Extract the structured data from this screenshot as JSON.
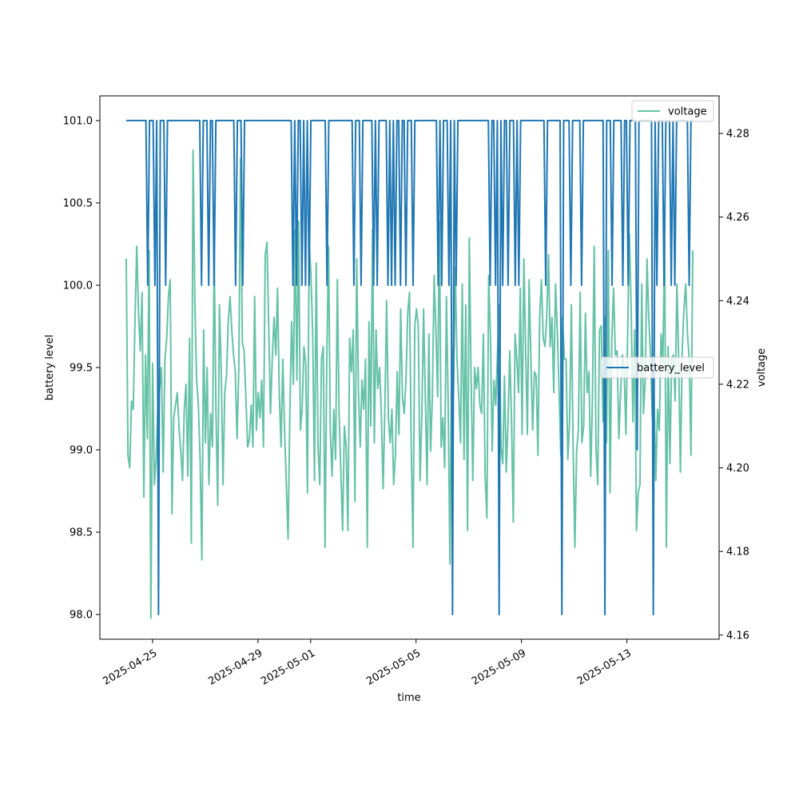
{
  "chart_data": {
    "type": "line",
    "xlabel": "time",
    "ylabel_left": "battery level",
    "ylabel_right": "voltage",
    "x_range": [
      "2025-04-23T00:00",
      "2025-05-16T12:00"
    ],
    "x_ticks": [
      "2025-04-25",
      "2025-04-29",
      "2025-05-01",
      "2025-05-05",
      "2025-05-09",
      "2025-05-13"
    ],
    "y_left_range": [
      97.85,
      101.15
    ],
    "y_left_ticks": [
      "98.0",
      "98.5",
      "99.0",
      "99.5",
      "100.0",
      "100.5",
      "101.0"
    ],
    "y_right_range": [
      4.159,
      4.289
    ],
    "y_right_ticks": [
      "4.16",
      "4.18",
      "4.20",
      "4.22",
      "4.24",
      "4.26",
      "4.28"
    ],
    "series_time_range": [
      "2025-04-24T00:00",
      "2025-05-15T12:00"
    ],
    "series": [
      {
        "name": "battery_level",
        "axis": "left",
        "color": "#1f77b4",
        "legend_position": "center-right",
        "values": [
          101,
          101,
          101,
          101,
          101,
          101,
          101,
          101,
          101,
          101,
          101,
          101,
          100,
          101,
          101,
          101,
          100,
          101,
          98,
          101,
          101,
          101,
          100,
          101,
          101,
          101,
          101,
          101,
          101,
          101,
          101,
          101,
          101,
          101,
          101,
          101,
          101,
          101,
          101,
          101,
          101,
          101,
          100,
          101,
          101,
          101,
          100,
          101,
          101,
          100,
          101,
          101,
          101,
          101,
          101,
          101,
          101,
          101,
          101,
          101,
          101,
          100,
          101,
          101,
          101,
          100,
          101,
          101,
          101,
          101,
          101,
          101,
          101,
          101,
          101,
          101,
          101,
          101,
          101,
          101,
          101,
          101,
          101,
          101,
          101,
          101,
          101,
          101,
          101,
          101,
          101,
          101,
          101,
          100,
          101,
          100,
          101,
          101,
          100,
          101,
          100,
          101,
          100,
          101,
          101,
          101,
          101,
          101,
          101,
          101,
          101,
          101,
          100,
          101,
          101,
          101,
          101,
          101,
          101,
          101,
          101,
          101,
          101,
          101,
          101,
          101,
          101,
          100,
          101,
          101,
          101,
          100,
          101,
          101,
          101,
          101,
          101,
          101,
          100,
          101,
          100,
          101,
          101,
          101,
          101,
          101,
          100,
          101,
          100,
          101,
          100,
          101,
          101,
          100,
          101,
          101,
          100,
          101,
          101,
          101,
          100,
          101,
          101,
          101,
          101,
          101,
          101,
          101,
          101,
          101,
          101,
          101,
          101,
          101,
          100,
          101,
          100,
          101,
          101,
          101,
          100,
          101,
          98,
          101,
          100,
          101,
          101,
          101,
          101,
          101,
          101,
          101,
          101,
          101,
          101,
          101,
          101,
          101,
          101,
          101,
          101,
          101,
          101,
          100,
          101,
          101,
          100,
          101,
          98,
          101,
          100,
          101,
          101,
          100,
          101,
          101,
          101,
          100,
          101,
          100,
          101,
          101,
          101,
          101,
          101,
          101,
          101,
          101,
          101,
          101,
          101,
          101,
          101,
          101,
          100,
          101,
          101,
          101,
          101,
          101,
          101,
          101,
          101,
          98,
          101,
          101,
          101,
          101,
          100,
          101,
          101,
          101,
          101,
          101,
          100,
          101,
          101,
          101,
          101,
          101,
          101,
          101,
          101,
          101,
          101,
          101,
          101,
          98,
          101,
          101,
          101,
          100,
          101,
          101,
          101,
          101,
          101,
          100,
          101,
          101,
          100,
          101,
          101,
          101,
          101,
          99,
          101,
          101,
          101,
          101,
          101,
          101,
          101,
          101,
          98,
          101,
          100,
          101,
          101,
          101,
          100,
          101,
          101,
          101,
          100,
          101,
          100,
          101,
          101,
          101,
          101,
          101,
          101,
          101,
          100,
          101,
          101
        ]
      },
      {
        "name": "voltage",
        "axis": "right",
        "color": "#66c2a5",
        "legend_position": "upper-right",
        "values": [
          4.25,
          4.203,
          4.2,
          4.216,
          4.214,
          4.236,
          4.253,
          4.237,
          4.228,
          4.242,
          4.193,
          4.227,
          4.207,
          4.252,
          4.164,
          4.225,
          4.196,
          4.202,
          4.215,
          4.219,
          4.224,
          4.199,
          4.226,
          4.231,
          4.241,
          4.245,
          4.189,
          4.212,
          4.215,
          4.218,
          4.21,
          4.204,
          4.197,
          4.214,
          4.22,
          4.198,
          4.231,
          4.182,
          4.276,
          4.24,
          4.221,
          4.215,
          4.202,
          4.178,
          4.233,
          4.206,
          4.224,
          4.196,
          4.213,
          4.205,
          4.251,
          4.214,
          4.191,
          4.239,
          4.223,
          4.196,
          4.218,
          4.222,
          4.235,
          4.241,
          4.233,
          4.227,
          4.223,
          4.207,
          4.224,
          4.274,
          4.23,
          4.228,
          4.217,
          4.205,
          4.207,
          4.215,
          4.205,
          4.241,
          4.209,
          4.218,
          4.212,
          4.221,
          4.205,
          4.251,
          4.254,
          4.234,
          4.213,
          4.226,
          4.236,
          4.227,
          4.243,
          4.218,
          4.205,
          4.226,
          4.209,
          4.196,
          4.183,
          4.213,
          4.235,
          4.22,
          4.257,
          4.221,
          4.259,
          4.209,
          4.214,
          4.229,
          4.225,
          4.194,
          4.254,
          4.246,
          4.232,
          4.197,
          4.249,
          4.205,
          4.196,
          4.226,
          4.229,
          4.181,
          4.226,
          4.253,
          4.209,
          4.198,
          4.214,
          4.202,
          4.245,
          4.213,
          4.199,
          4.185,
          4.21,
          4.205,
          4.185,
          4.231,
          4.223,
          4.233,
          4.192,
          4.25,
          4.218,
          4.205,
          4.221,
          4.214,
          4.226,
          4.181,
          4.235,
          4.21,
          4.257,
          4.206,
          4.233,
          4.219,
          4.224,
          4.213,
          4.195,
          4.214,
          4.24,
          4.212,
          4.206,
          4.214,
          4.196,
          4.203,
          4.223,
          4.208,
          4.238,
          4.217,
          4.213,
          4.221,
          4.237,
          4.242,
          4.205,
          4.181,
          4.234,
          4.238,
          4.234,
          4.197,
          4.212,
          4.238,
          4.217,
          4.196,
          4.232,
          4.204,
          4.217,
          4.246,
          4.233,
          4.217,
          4.259,
          4.205,
          4.212,
          4.2,
          4.241,
          4.215,
          4.177,
          4.229,
          4.218,
          4.248,
          4.226,
          4.217,
          4.206,
          4.244,
          4.202,
          4.239,
          4.185,
          4.255,
          4.222,
          4.197,
          4.224,
          4.219,
          4.224,
          4.215,
          4.213,
          4.232,
          4.198,
          4.188,
          4.246,
          4.232,
          4.204,
          4.221,
          4.215,
          4.227,
          4.239,
          4.205,
          4.201,
          4.222,
          4.199,
          4.211,
          4.228,
          4.211,
          4.187,
          4.232,
          4.226,
          4.218,
          4.243,
          4.208,
          4.25,
          4.229,
          4.208,
          4.245,
          4.226,
          4.209,
          4.223,
          4.222,
          4.203,
          4.236,
          4.245,
          4.231,
          4.229,
          4.236,
          4.251,
          4.229,
          4.236,
          4.218,
          4.244,
          4.233,
          4.219,
          4.203,
          4.236,
          4.226,
          4.226,
          4.202,
          4.211,
          4.239,
          4.205,
          4.181,
          4.204,
          4.209,
          4.242,
          4.206,
          4.21,
          4.237,
          4.218,
          4.223,
          4.198,
          4.217,
          4.253,
          4.205,
          4.196,
          4.233,
          4.234,
          4.211,
          4.236,
          4.206,
          4.252,
          4.194,
          4.231,
          4.243,
          4.227,
          4.228,
          4.207,
          4.218,
          4.227,
          4.224,
          4.208,
          4.232,
          4.256,
          4.238,
          4.211,
          4.233,
          4.185,
          4.194,
          4.196,
          4.244,
          4.213,
          4.221,
          4.25,
          4.236,
          4.227,
          4.212,
          4.217,
          4.197,
          4.214,
          4.209,
          4.232,
          4.225,
          4.254,
          4.181,
          4.229,
          4.201,
          4.226,
          4.227,
          4.216,
          4.244,
          4.226,
          4.199,
          4.228,
          4.238,
          4.244,
          4.232,
          4.226,
          4.203,
          4.252
        ]
      }
    ]
  }
}
